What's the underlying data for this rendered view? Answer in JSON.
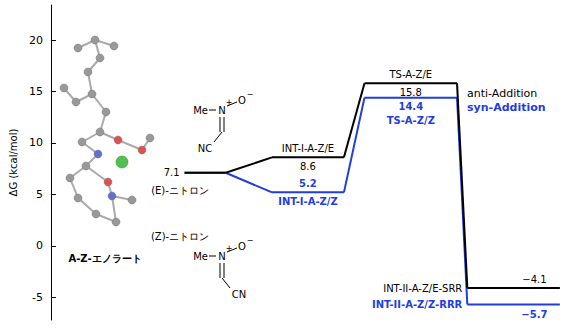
{
  "chart_data": {
    "type": "energy_profile",
    "y_label": "ΔG (kcal/mol)",
    "categories": [
      null,
      null,
      null,
      null,
      null
    ],
    "ylim": [
      -7.2,
      23.4
    ],
    "yticks": [
      -5,
      0,
      5,
      10,
      15,
      20
    ],
    "grid": false,
    "tick_labels": "y",
    "data_labels": true,
    "series": [
      {
        "name": "anti-Addition",
        "color": "#000000",
        "values": [
          null,
          7.1,
          8.6,
          15.8,
          -4.1
        ],
        "value_labels": [
          null,
          "7.1",
          "8.6",
          "15.8",
          "−4.1"
        ],
        "stage_labels": [
          null,
          null,
          "INT-I-A-Z/E",
          "TS-A-Z/E",
          "INT-II-A-Z/E-SRR"
        ]
      },
      {
        "name": "syn-Addition",
        "color": "#1f3de0",
        "values": [
          null,
          7.1,
          5.2,
          14.4,
          -5.7
        ],
        "value_labels": [
          null,
          null,
          "5.2",
          "14.4",
          "−5.7"
        ],
        "stage_labels": [
          null,
          null,
          "INT-I-A-Z/Z",
          "TS-A-Z/Z",
          "INT-II-A-Z/Z-RRR"
        ]
      }
    ],
    "annotations": {
      "reactant": "A-Z-エノラート",
      "e_nitrone": {
        "label": "(E)-ニトロン",
        "group": "NC"
      },
      "z_nitrone": {
        "label": "(Z)-ニトロン",
        "group": "CN"
      },
      "nitrone_atoms": {
        "methyl": "Me",
        "nitrogen": "N",
        "oxygen": "O",
        "plus": "+",
        "minus": "−"
      }
    }
  }
}
